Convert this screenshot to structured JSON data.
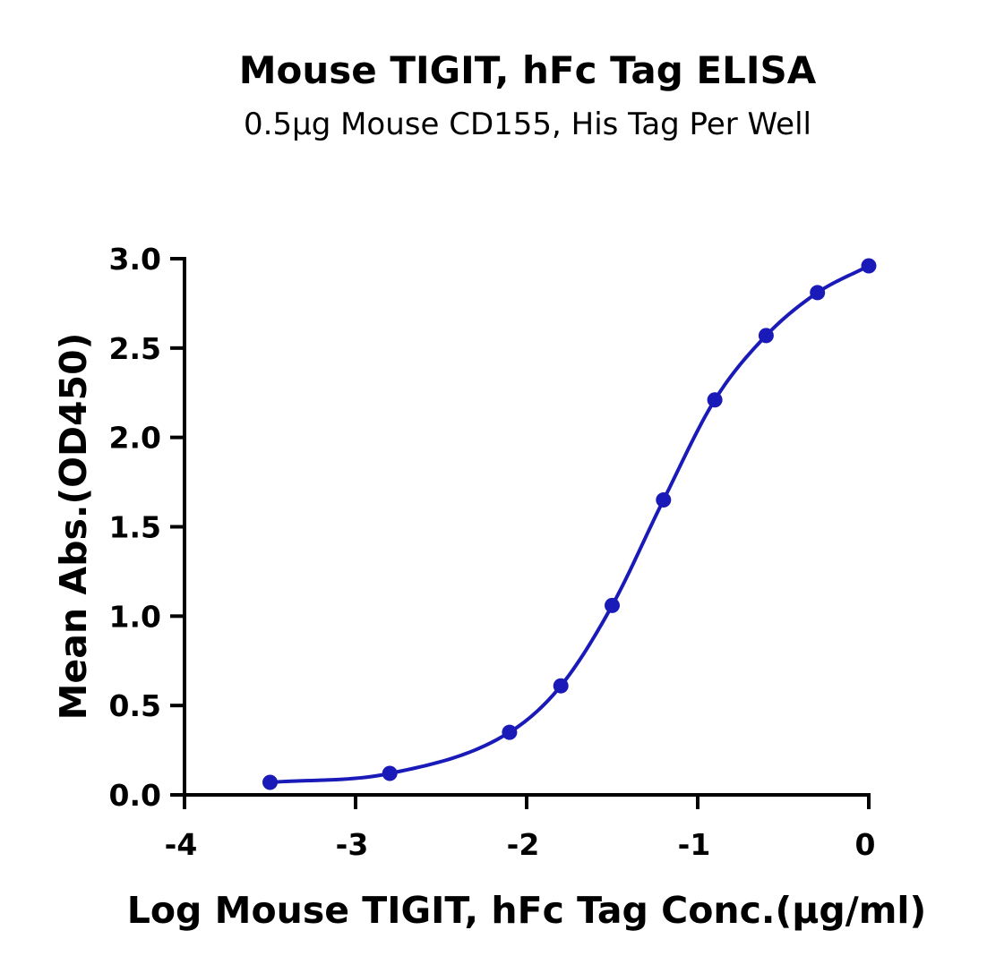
{
  "chart_data": {
    "type": "scatter",
    "title": "Mouse TIGIT, hFc Tag ELISA",
    "subtitle": "0.5μg Mouse CD155, His Tag Per Well",
    "xlabel": "Log Mouse TIGIT, hFc Tag Conc.(μg/ml)",
    "ylabel": "Mean Abs.(OD450)",
    "xlim": [
      -4,
      0
    ],
    "ylim": [
      0,
      3
    ],
    "x_ticks": [
      -4,
      -3,
      -2,
      -1,
      0
    ],
    "x_tick_labels": [
      "-4",
      "-3",
      "-2",
      "-1",
      "0"
    ],
    "y_ticks": [
      0,
      0.5,
      1,
      1.5,
      2,
      2.5,
      3
    ],
    "y_tick_labels": [
      "0.0",
      "0.5",
      "1.0",
      "1.5",
      "2.0",
      "2.5",
      "3.0"
    ],
    "grid": false,
    "legend": "none",
    "color": "#1a1ab8",
    "fit": "4PL sigmoid curve through points",
    "series": [
      {
        "x": [
          -3.5,
          -2.8,
          -2.1,
          -1.8,
          -1.5,
          -1.2,
          -0.9,
          -0.6,
          -0.3,
          0.0
        ],
        "y": [
          0.07,
          0.12,
          0.35,
          0.61,
          1.06,
          1.65,
          2.21,
          2.57,
          2.81,
          2.96
        ]
      }
    ]
  }
}
